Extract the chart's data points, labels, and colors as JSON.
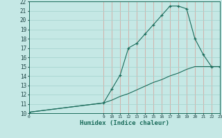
{
  "xlabel": "Humidex (Indice chaleur)",
  "bg_color": "#c5e8e5",
  "vgrid_color": "#d4a8a0",
  "hgrid_color": "#a8d4d0",
  "line_color": "#1a6b5a",
  "xlim": [
    0,
    23
  ],
  "ylim": [
    10,
    22
  ],
  "x_ticks": [
    0,
    9,
    10,
    11,
    12,
    13,
    14,
    15,
    16,
    17,
    18,
    19,
    20,
    21,
    22,
    23
  ],
  "y_ticks": [
    10,
    11,
    12,
    13,
    14,
    15,
    16,
    17,
    18,
    19,
    20,
    21,
    22
  ],
  "line1_x": [
    0,
    9,
    10,
    11,
    12,
    13,
    14,
    15,
    16,
    17,
    18,
    19,
    20,
    21,
    22,
    23
  ],
  "line1_y": [
    10.1,
    11.1,
    12.6,
    14.1,
    17.0,
    17.5,
    18.5,
    19.5,
    20.5,
    21.5,
    21.5,
    21.2,
    18.0,
    16.3,
    15.0,
    15.0
  ],
  "line2_x": [
    0,
    9,
    10,
    11,
    12,
    13,
    14,
    15,
    16,
    17,
    18,
    19,
    20,
    21,
    22,
    23
  ],
  "line2_y": [
    10.1,
    11.1,
    11.4,
    11.8,
    12.1,
    12.5,
    12.9,
    13.3,
    13.6,
    14.0,
    14.3,
    14.7,
    15.0,
    15.0,
    15.0,
    15.0
  ]
}
